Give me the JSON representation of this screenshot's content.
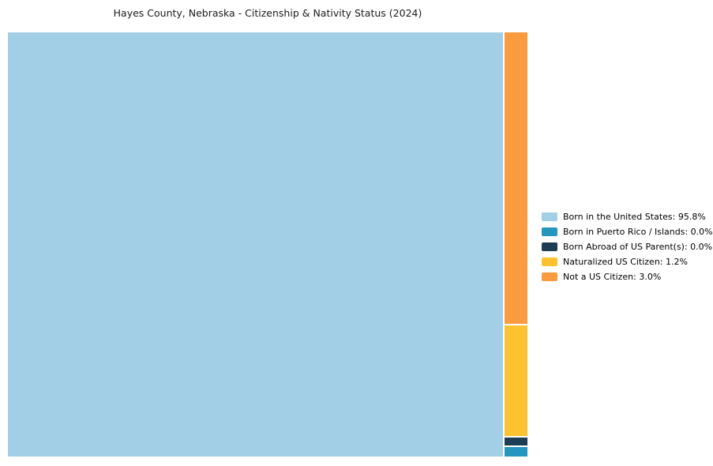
{
  "chart_data": {
    "type": "treemap",
    "title": "Hayes County, Nebraska - Citizenship & Nativity Status (2024)",
    "legend_position": "right",
    "background_color": "#ffffff",
    "unit": "percent",
    "segments": [
      {
        "name": "Born in the United States",
        "value_pct": 95.8,
        "color": "#a3cfe6",
        "legend_label": "Born in the United States: 95.8%"
      },
      {
        "name": "Born in Puerto Rico / Islands",
        "value_pct": 0.0,
        "color": "#2596be",
        "legend_label": "Born in Puerto Rico / Islands: 0.0%"
      },
      {
        "name": "Born Abroad of US Parent(s)",
        "value_pct": 0.0,
        "color": "#1d3d54",
        "legend_label": "Born Abroad of US Parent(s): 0.0%"
      },
      {
        "name": "Naturalized US Citizen",
        "value_pct": 1.2,
        "color": "#fdc22f",
        "legend_label": "Naturalized US Citizen: 1.2%"
      },
      {
        "name": "Not a US Citizen",
        "value_pct": 3.0,
        "color": "#f99b3e",
        "legend_label": "Not a US Citizen: 3.0%"
      }
    ]
  }
}
